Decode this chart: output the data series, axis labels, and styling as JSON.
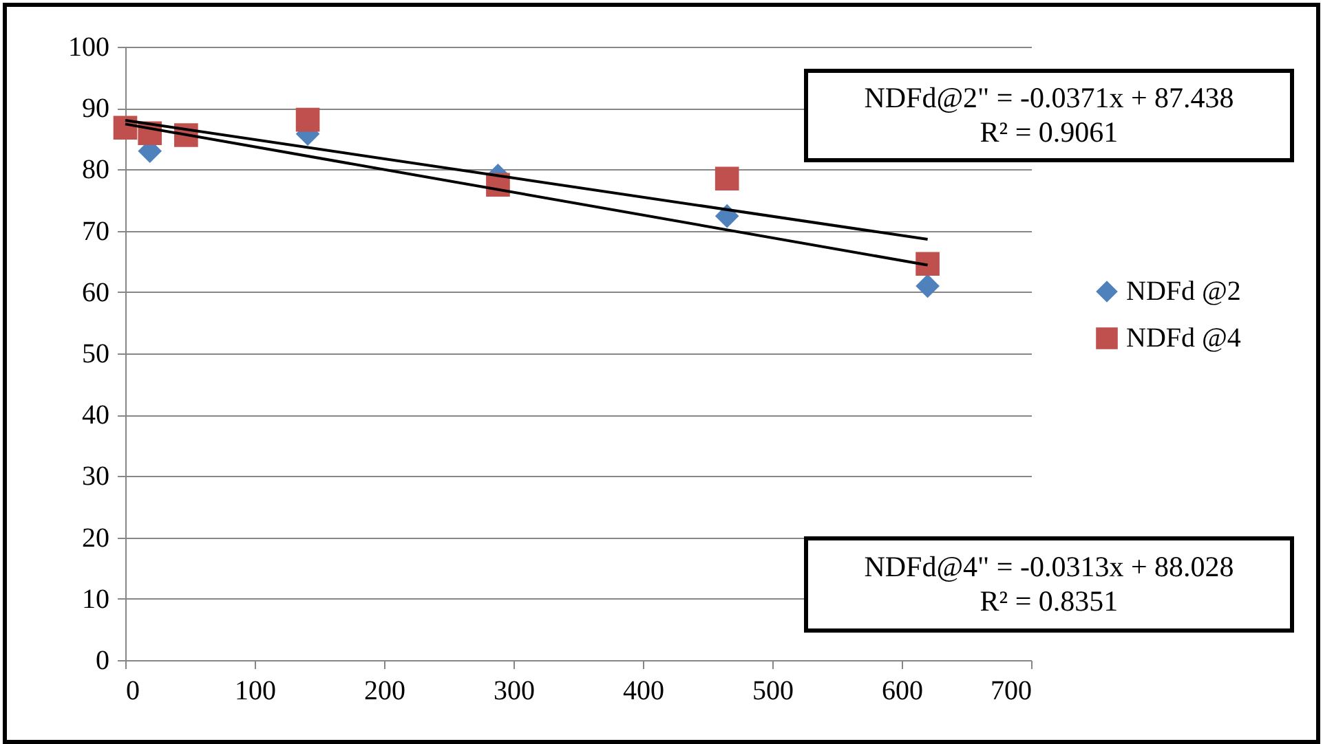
{
  "chart_data": {
    "type": "scatter",
    "series": [
      {
        "name": "NDFd @2",
        "color": "#4f81bd",
        "marker": "diamond",
        "x": [
          19,
          141,
          288,
          465,
          620
        ],
        "values": [
          83,
          85.8,
          79,
          72.4,
          61
        ]
      },
      {
        "name": "NDFd @4",
        "color": "#c0504d",
        "marker": "square",
        "x": [
          0,
          19,
          47,
          141,
          288,
          465,
          620
        ],
        "values": [
          86.8,
          85.9,
          85.6,
          88.1,
          77.5,
          78.5,
          64.6
        ]
      },
      {
        "type": "line",
        "color": "#000000",
        "x": [
          0,
          620
        ],
        "values": [
          87.4,
          64.4
        ]
      },
      {
        "type": "line",
        "color": "#000000",
        "x": [
          0,
          620
        ],
        "values": [
          88.0,
          68.6
        ]
      }
    ],
    "annotations": [
      "NDFd@2\" = -0.0371x + 87.438\nR² = 0.9061",
      "NDFd@4\" = -0.0313x + 88.028\nR² = 0.8351"
    ],
    "xlim": [
      0,
      700
    ],
    "xticks": [
      0,
      100,
      200,
      300,
      400,
      500,
      600,
      700
    ],
    "ylim": [
      0,
      100
    ],
    "yticks": [
      0,
      10,
      20,
      30,
      40,
      50,
      60,
      70,
      80,
      90,
      100
    ],
    "grid": "y",
    "legend": "right"
  }
}
